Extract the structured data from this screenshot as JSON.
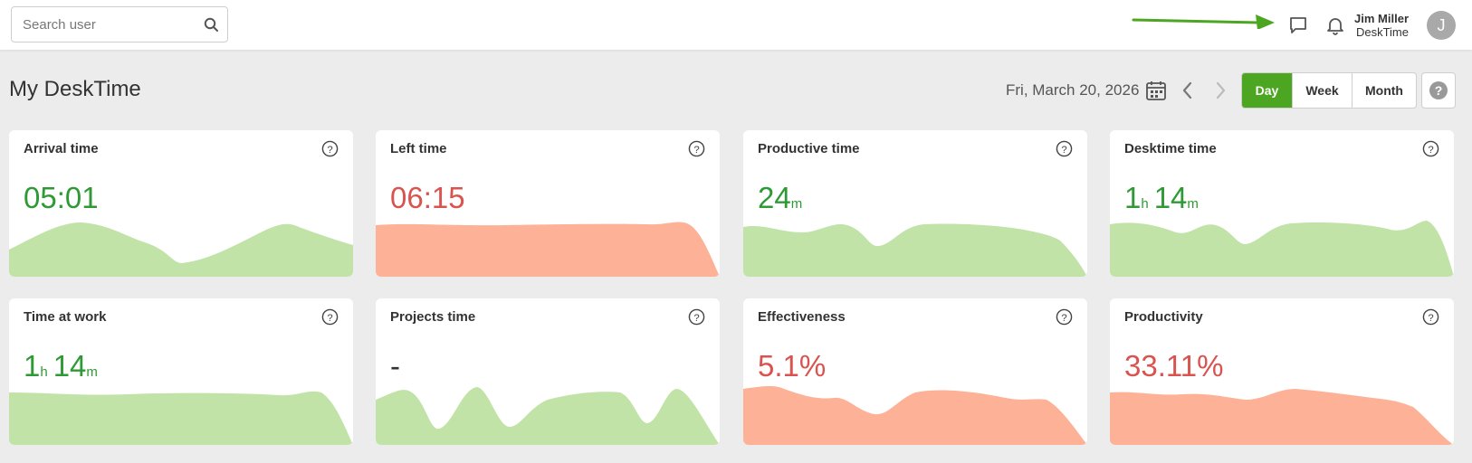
{
  "topbar": {
    "search_placeholder": "Search user",
    "icons": {
      "search": "search-icon",
      "chat": "chat-icon",
      "bell": "bell-icon",
      "arrow": "green-arrow"
    },
    "user": {
      "name": "Jim Miller",
      "company": "DeskTime",
      "avatar_initial": "J"
    }
  },
  "header": {
    "title": "My DeskTime",
    "date": "Fri, March 20, 2026",
    "periods": [
      "Day",
      "Week",
      "Month"
    ],
    "active_period": "Day"
  },
  "colors": {
    "accent": "#4da621",
    "good": "#2f9a35",
    "bad": "#d9534f",
    "good_fill": "#c1e3a8",
    "bad_fill": "#fdb197"
  },
  "cards": [
    {
      "title": "Arrival time",
      "value": "05:01",
      "status": "good"
    },
    {
      "title": "Left time",
      "value": "06:15",
      "status": "bad"
    },
    {
      "title": "Productive time",
      "value_parts": [
        {
          "num": "24",
          "unit": "m"
        }
      ],
      "status": "good"
    },
    {
      "title": "Desktime time",
      "value_parts": [
        {
          "num": "1",
          "unit": "h"
        },
        {
          "num": "14",
          "unit": "m"
        }
      ],
      "status": "good"
    },
    {
      "title": "Time at work",
      "value_parts": [
        {
          "num": "1",
          "unit": "h"
        },
        {
          "num": "14",
          "unit": "m"
        }
      ],
      "status": "good"
    },
    {
      "title": "Projects time",
      "value": "-",
      "status": "neutral"
    },
    {
      "title": "Effectiveness",
      "value": "5.1%",
      "status": "bad"
    },
    {
      "title": "Productivity",
      "value": "33.11%",
      "status": "bad"
    }
  ]
}
